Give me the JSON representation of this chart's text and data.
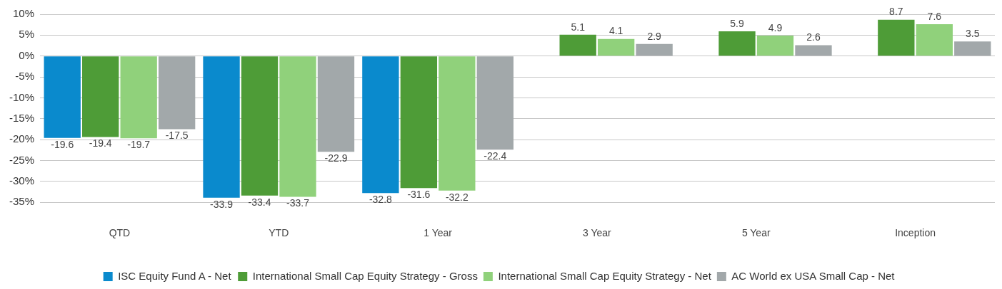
{
  "chart_data": {
    "type": "bar",
    "categories": [
      "QTD",
      "YTD",
      "1 Year",
      "3 Year",
      "5 Year",
      "Inception"
    ],
    "series": [
      {
        "name": "ISC Equity Fund A - Net",
        "color": "#0a8acd",
        "values": [
          -19.6,
          -33.9,
          -32.8,
          null,
          null,
          null
        ]
      },
      {
        "name": "International Small Cap Equity Strategy - Gross",
        "color": "#4e9c37",
        "values": [
          -19.4,
          -33.4,
          -31.6,
          5.1,
          5.9,
          8.7
        ]
      },
      {
        "name": "International Small Cap Equity Strategy - Net",
        "color": "#90d17b",
        "values": [
          -19.7,
          -33.7,
          -32.2,
          4.1,
          4.9,
          7.6
        ]
      },
      {
        "name": "AC World ex USA Small Cap - Net",
        "color": "#a2a8aa",
        "values": [
          -17.5,
          -22.9,
          -22.4,
          2.9,
          2.6,
          3.5
        ]
      }
    ],
    "ylim": [
      -35,
      10
    ],
    "yticks": [
      {
        "value": -35,
        "label": "-35%"
      },
      {
        "value": -30,
        "label": "-30%"
      },
      {
        "value": -25,
        "label": "-25%"
      },
      {
        "value": -20,
        "label": "-20%"
      },
      {
        "value": -15,
        "label": "-15%"
      },
      {
        "value": -10,
        "label": "-10%"
      },
      {
        "value": -5,
        "label": "-5%"
      },
      {
        "value": 0,
        "label": "0%"
      },
      {
        "value": 5,
        "label": "5%"
      },
      {
        "value": 10,
        "label": "10%"
      }
    ],
    "grid": "y",
    "legend": "bottom",
    "data_labels": true
  }
}
